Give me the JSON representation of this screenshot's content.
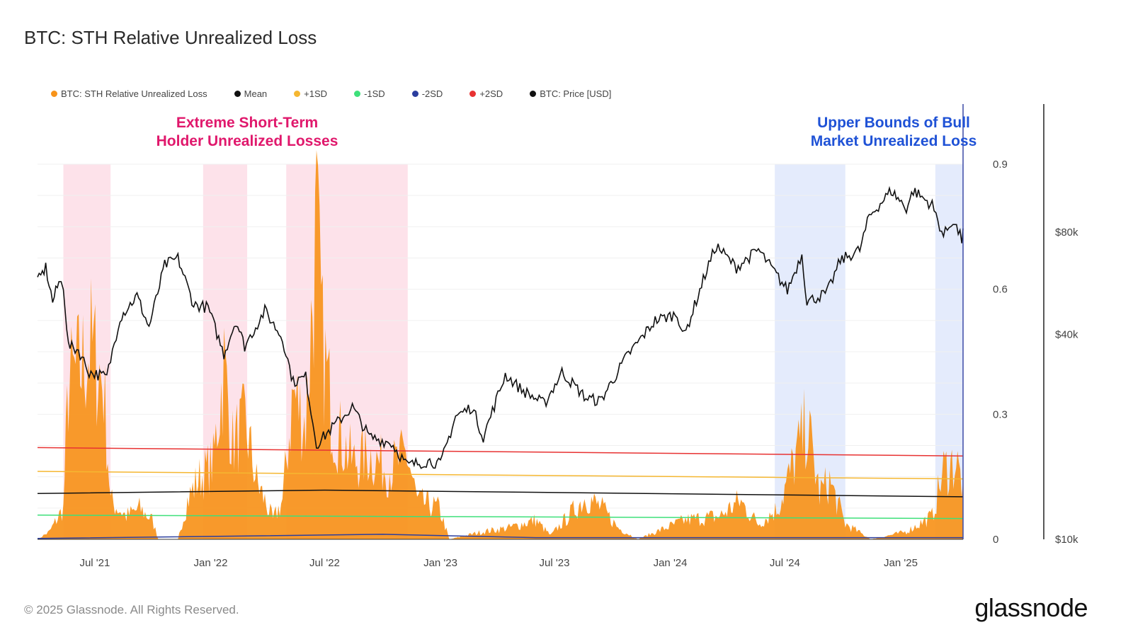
{
  "title": "BTC: STH Relative Unrealized Loss",
  "legend": [
    {
      "label": "BTC: STH Relative Unrealized Loss",
      "color": "#f7931a"
    },
    {
      "label": "Mean",
      "color": "#111111"
    },
    {
      "label": "+1SD",
      "color": "#f5b731"
    },
    {
      "label": "-1SD",
      "color": "#3ee07a"
    },
    {
      "label": "-2SD",
      "color": "#2b3d9e"
    },
    {
      "label": "+2SD",
      "color": "#e83232"
    },
    {
      "label": "BTC: Price [USD]",
      "color": "#111111"
    }
  ],
  "annotations": {
    "left": {
      "line1": "Extreme Short-Term",
      "line2": "Holder Unrealized Losses",
      "color": "#e0186c"
    },
    "right": {
      "line1": "Upper Bounds of Bull",
      "line2": "Market Unrealized Loss",
      "color": "#1f52d6"
    }
  },
  "footer": {
    "copyright": "© 2025 Glassnode. All Rights Reserved.",
    "logo": "glassnode"
  },
  "chart_data": {
    "type": "area",
    "x_ticks": [
      "Jul '21",
      "Jan '22",
      "Jul '22",
      "Jan '23",
      "Jul '23",
      "Jan '24",
      "Jul '24",
      "Jan '25"
    ],
    "y_left": {
      "ticks": [
        "0",
        "0.3",
        "0.6",
        "0.9"
      ],
      "values": [
        0,
        0.3,
        0.6,
        0.9
      ]
    },
    "y_right": {
      "ticks": [
        "$10k",
        "$40k",
        "$80k"
      ],
      "scale": "log"
    },
    "x_range": [
      "2021-04-01",
      "2025-04-10"
    ],
    "ylim": [
      0,
      0.9
    ],
    "highlight_bands": [
      {
        "start": "2021-05-12",
        "end": "2021-07-26",
        "color": "#fde2ea"
      },
      {
        "start": "2021-12-20",
        "end": "2022-02-28",
        "color": "#fde2ea"
      },
      {
        "start": "2022-05-01",
        "end": "2022-11-10",
        "color": "#fde2ea"
      },
      {
        "start": "2024-06-15",
        "end": "2024-10-05",
        "color": "#e4ebfc"
      },
      {
        "start": "2025-02-25",
        "end": "2025-04-10",
        "color": "#e4ebfc"
      }
    ],
    "series": [
      {
        "name": "BTC: STH Relative Unrealized Loss",
        "color": "#f7931a",
        "kind": "area",
        "points": [
          [
            "2021-04-01",
            0.0
          ],
          [
            "2021-04-20",
            0.02
          ],
          [
            "2021-05-12",
            0.08
          ],
          [
            "2021-05-20",
            0.4
          ],
          [
            "2021-06-10",
            0.45
          ],
          [
            "2021-06-25",
            0.5
          ],
          [
            "2021-07-15",
            0.4
          ],
          [
            "2021-07-26",
            0.1
          ],
          [
            "2021-08-20",
            0.06
          ],
          [
            "2021-09-10",
            0.08
          ],
          [
            "2021-09-30",
            0.05
          ],
          [
            "2021-10-10",
            0.0
          ],
          [
            "2021-11-10",
            0.0
          ],
          [
            "2021-11-25",
            0.1
          ],
          [
            "2021-12-10",
            0.15
          ],
          [
            "2022-01-05",
            0.2
          ],
          [
            "2022-01-22",
            0.45
          ],
          [
            "2022-02-05",
            0.25
          ],
          [
            "2022-02-25",
            0.3
          ],
          [
            "2022-03-15",
            0.15
          ],
          [
            "2022-04-10",
            0.05
          ],
          [
            "2022-04-25",
            0.1
          ],
          [
            "2022-05-12",
            0.38
          ],
          [
            "2022-06-01",
            0.3
          ],
          [
            "2022-06-18",
            0.8
          ],
          [
            "2022-06-28",
            0.5
          ],
          [
            "2022-07-15",
            0.3
          ],
          [
            "2022-08-15",
            0.2
          ],
          [
            "2022-09-10",
            0.22
          ],
          [
            "2022-10-10",
            0.18
          ],
          [
            "2022-11-09",
            0.22
          ],
          [
            "2022-11-25",
            0.1
          ],
          [
            "2022-12-30",
            0.08
          ],
          [
            "2023-01-15",
            0.0
          ],
          [
            "2023-03-10",
            0.02
          ],
          [
            "2023-04-20",
            0.03
          ],
          [
            "2023-06-01",
            0.05
          ],
          [
            "2023-06-25",
            0.01
          ],
          [
            "2023-08-20",
            0.11
          ],
          [
            "2023-09-15",
            0.08
          ],
          [
            "2023-10-10",
            0.03
          ],
          [
            "2023-11-10",
            0.0
          ],
          [
            "2024-01-25",
            0.05
          ],
          [
            "2024-03-20",
            0.06
          ],
          [
            "2024-04-20",
            0.1
          ],
          [
            "2024-05-20",
            0.04
          ],
          [
            "2024-06-20",
            0.08
          ],
          [
            "2024-07-05",
            0.15
          ],
          [
            "2024-08-05",
            0.3
          ],
          [
            "2024-08-25",
            0.12
          ],
          [
            "2024-09-10",
            0.15
          ],
          [
            "2024-10-05",
            0.04
          ],
          [
            "2024-11-15",
            0.0
          ],
          [
            "2025-01-10",
            0.02
          ],
          [
            "2025-02-20",
            0.06
          ],
          [
            "2025-03-10",
            0.18
          ],
          [
            "2025-03-30",
            0.2
          ],
          [
            "2025-04-10",
            0.14
          ]
        ]
      },
      {
        "name": "Mean",
        "color": "#111111",
        "kind": "line",
        "points": [
          [
            "2021-04-01",
            0.11
          ],
          [
            "2022-07-01",
            0.118
          ],
          [
            "2025-04-10",
            0.102
          ]
        ]
      },
      {
        "name": "+1SD",
        "color": "#f5b731",
        "kind": "line",
        "points": [
          [
            "2021-04-01",
            0.163
          ],
          [
            "2025-04-10",
            0.145
          ]
        ]
      },
      {
        "name": "-1SD",
        "color": "#3ee07a",
        "kind": "line",
        "points": [
          [
            "2021-04-01",
            0.058
          ],
          [
            "2025-04-10",
            0.05
          ]
        ]
      },
      {
        "name": "-2SD",
        "color": "#2b3d9e",
        "kind": "line",
        "points": [
          [
            "2021-04-01",
            0.002
          ],
          [
            "2022-10-01",
            0.012
          ],
          [
            "2023-06-01",
            0.004
          ],
          [
            "2025-04-10",
            0.004
          ]
        ]
      },
      {
        "name": "+2SD",
        "color": "#e83232",
        "kind": "line",
        "points": [
          [
            "2021-04-01",
            0.22
          ],
          [
            "2025-04-10",
            0.2
          ]
        ]
      },
      {
        "name": "BTC: Price [USD]",
        "color": "#111111",
        "kind": "line",
        "axis": "right",
        "points": [
          [
            "2021-04-01",
            57000
          ],
          [
            "2021-04-14",
            63000
          ],
          [
            "2021-04-25",
            50000
          ],
          [
            "2021-05-05",
            57000
          ],
          [
            "2021-05-12",
            56000
          ],
          [
            "2021-05-20",
            37000
          ],
          [
            "2021-06-05",
            36000
          ],
          [
            "2021-06-22",
            31000
          ],
          [
            "2021-07-20",
            30000
          ],
          [
            "2021-08-10",
            45000
          ],
          [
            "2021-09-06",
            52000
          ],
          [
            "2021-09-25",
            42000
          ],
          [
            "2021-10-20",
            64000
          ],
          [
            "2021-11-10",
            67000
          ],
          [
            "2021-12-05",
            49000
          ],
          [
            "2021-12-28",
            48000
          ],
          [
            "2022-01-22",
            35000
          ],
          [
            "2022-02-10",
            44000
          ],
          [
            "2022-02-24",
            37000
          ],
          [
            "2022-03-28",
            47000
          ],
          [
            "2022-04-25",
            39000
          ],
          [
            "2022-05-12",
            29000
          ],
          [
            "2022-06-01",
            30000
          ],
          [
            "2022-06-18",
            19000
          ],
          [
            "2022-07-10",
            21000
          ],
          [
            "2022-08-14",
            24500
          ],
          [
            "2022-09-10",
            20000
          ],
          [
            "2022-10-15",
            19200
          ],
          [
            "2022-11-09",
            16500
          ],
          [
            "2022-12-15",
            17000
          ],
          [
            "2023-01-01",
            16600
          ],
          [
            "2023-01-25",
            23000
          ],
          [
            "2023-02-20",
            24500
          ],
          [
            "2023-03-10",
            20000
          ],
          [
            "2023-04-14",
            30500
          ],
          [
            "2023-05-10",
            27500
          ],
          [
            "2023-06-15",
            25000
          ],
          [
            "2023-07-13",
            31000
          ],
          [
            "2023-08-20",
            26000
          ],
          [
            "2023-09-12",
            25500
          ],
          [
            "2023-10-24",
            34500
          ],
          [
            "2023-12-08",
            44000
          ],
          [
            "2024-01-12",
            46000
          ],
          [
            "2024-01-23",
            39500
          ],
          [
            "2024-02-28",
            62000
          ],
          [
            "2024-03-14",
            73000
          ],
          [
            "2024-04-15",
            63000
          ],
          [
            "2024-05-20",
            71000
          ],
          [
            "2024-07-05",
            54000
          ],
          [
            "2024-07-28",
            69000
          ],
          [
            "2024-08-05",
            50000
          ],
          [
            "2024-09-06",
            53000
          ],
          [
            "2024-09-27",
            66000
          ],
          [
            "2024-10-28",
            71000
          ],
          [
            "2024-11-12",
            89000
          ],
          [
            "2024-12-17",
            106000
          ],
          [
            "2025-01-10",
            94000
          ],
          [
            "2025-01-21",
            106000
          ],
          [
            "2025-02-20",
            96000
          ],
          [
            "2025-03-10",
            78000
          ],
          [
            "2025-03-25",
            87000
          ],
          [
            "2025-04-08",
            76000
          ],
          [
            "2025-04-10",
            82000
          ]
        ]
      }
    ]
  }
}
